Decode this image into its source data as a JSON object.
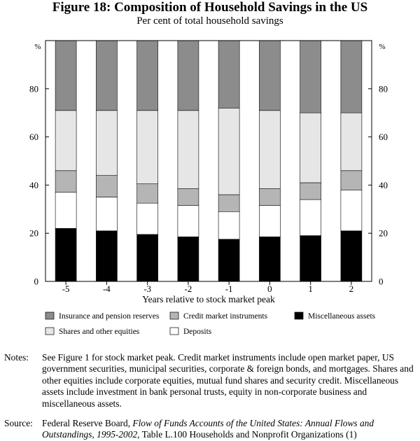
{
  "title": "Figure 18: Composition of Household Savings in the US",
  "subtitle": "Per cent of total household savings",
  "colors": {
    "insurance": "#8c8c8c",
    "shares": "#e6e6e6",
    "credit": "#b5b5b5",
    "deposits": "#ffffff",
    "misc": "#000000"
  },
  "chart_data": {
    "type": "bar",
    "stacked": true,
    "categories": [
      "-5",
      "-4",
      "-3",
      "-2",
      "-1",
      "0",
      "1",
      "2"
    ],
    "xlabel": "Years relative to stock market peak",
    "ylabel_left": "%",
    "ylabel_right": "%",
    "ylim": [
      0,
      100
    ],
    "yticks": [
      0,
      20,
      40,
      60,
      80
    ],
    "grid": false,
    "legend_position": "bottom",
    "series": [
      {
        "name": "Miscellaneous assets",
        "key": "misc",
        "values": [
          22,
          21,
          19.5,
          18.5,
          17.5,
          18.5,
          19,
          21
        ]
      },
      {
        "name": "Deposits",
        "key": "deposits",
        "values": [
          15,
          14,
          13,
          13,
          11.5,
          13,
          15,
          17
        ]
      },
      {
        "name": "Credit market instruments",
        "key": "credit",
        "values": [
          9,
          9,
          8,
          7,
          7,
          7,
          7,
          8
        ]
      },
      {
        "name": "Shares and other equities",
        "key": "shares",
        "values": [
          25,
          27,
          30.5,
          32.5,
          36,
          32.5,
          29,
          24
        ]
      },
      {
        "name": "Insurance and pension reserves",
        "key": "insurance",
        "values": [
          29,
          29,
          29,
          29,
          28,
          29,
          30,
          30
        ]
      }
    ]
  },
  "legend": [
    {
      "label": "Insurance and pension reserves",
      "key": "insurance"
    },
    {
      "label": "Credit market instruments",
      "key": "credit"
    },
    {
      "label": "Miscellaneous assets",
      "key": "misc"
    },
    {
      "label": "Shares and other equities",
      "key": "shares"
    },
    {
      "label": "Deposits",
      "key": "deposits"
    }
  ],
  "notes": {
    "label": "Notes:",
    "text": "See Figure 1 for stock market peak. Credit market instruments include open market paper, US government securities, municipal securities, corporate & foreign bonds, and mortgages. Shares and other equities include corporate equities, mutual fund shares and security credit. Miscellaneous assets include investment in bank personal trusts, equity in non-corporate business and miscellaneous assets."
  },
  "source": {
    "label": "Source:",
    "prefix": "Federal Reserve Board, ",
    "italic": "Flow of Funds Accounts of the United States: Annual Flows and Outstandings, 1995-2002",
    "suffix": ", Table L.100 Households and Nonprofit Organizations (1)"
  }
}
